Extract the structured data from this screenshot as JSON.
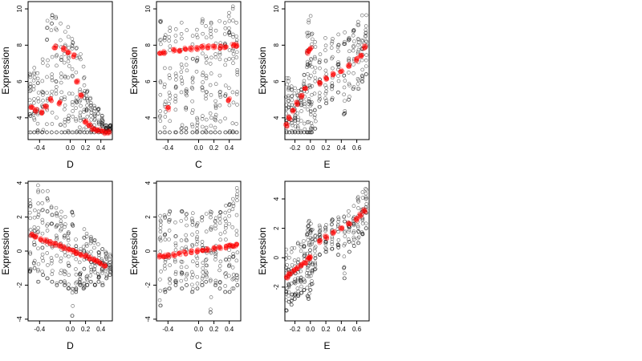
{
  "chart_data": [
    {
      "type": "scatter",
      "ylabel": "Expression",
      "xlabel": "D",
      "xlim": [
        -0.55,
        0.55
      ],
      "ylim": [
        2.8,
        10.4
      ],
      "xticks": [
        -0.4,
        0.0,
        0.2,
        0.4
      ],
      "xtick_labels": [
        "-0.4",
        "0.0",
        "0.2",
        "0.4"
      ],
      "yticks": [
        4,
        6,
        8,
        10
      ],
      "ytick_labels": [
        "4",
        "6",
        "8",
        "10"
      ],
      "grid": false,
      "series": [
        {
          "kind": "observed",
          "color": "#000000",
          "columns": [
            -0.52,
            -0.47,
            -0.42,
            -0.36,
            -0.3,
            -0.24,
            -0.18,
            -0.12,
            -0.07,
            -0.02,
            0.03,
            0.08,
            0.13,
            0.18,
            0.22,
            0.27,
            0.32,
            0.37,
            0.42,
            0.47,
            0.52
          ],
          "ranges": [
            [
              3.2,
              7.0
            ],
            [
              3.2,
              6.8
            ],
            [
              3.2,
              6.5
            ],
            [
              3.2,
              7.3
            ],
            [
              3.2,
              9.5
            ],
            [
              3.2,
              9.8
            ],
            [
              3.2,
              10.2
            ],
            [
              3.2,
              9.6
            ],
            [
              3.2,
              9.4
            ],
            [
              3.2,
              9.0
            ],
            [
              3.2,
              8.6
            ],
            [
              3.2,
              8.2
            ],
            [
              3.2,
              7.6
            ],
            [
              3.2,
              7.0
            ],
            [
              3.2,
              5.6
            ],
            [
              3.2,
              5.2
            ],
            [
              3.2,
              4.8
            ],
            [
              3.2,
              4.7
            ],
            [
              3.2,
              4.2
            ],
            [
              3.2,
              3.8
            ],
            [
              3.2,
              3.6
            ]
          ]
        },
        {
          "kind": "fitted",
          "color": "#ff0000",
          "x": [
            -0.5,
            -0.45,
            -0.38,
            -0.32,
            -0.26,
            -0.2,
            -0.14,
            -0.08,
            -0.02,
            0.04,
            0.09,
            0.14,
            0.2,
            0.25,
            0.3,
            0.35,
            0.4,
            0.45,
            0.5
          ],
          "y": [
            4.6,
            4.4,
            4.3,
            4.6,
            5.0,
            7.9,
            4.8,
            7.8,
            7.6,
            7.4,
            6.0,
            5.2,
            3.8,
            3.6,
            3.4,
            3.3,
            3.3,
            3.2,
            3.2
          ]
        }
      ]
    },
    {
      "type": "scatter",
      "ylabel": "Expression",
      "xlabel": "C",
      "xlim": [
        -0.55,
        0.55
      ],
      "ylim": [
        2.8,
        10.4
      ],
      "xticks": [
        -0.4,
        0.0,
        0.2,
        0.4
      ],
      "xtick_labels": [
        "-0.4",
        "0.0",
        "0.2",
        "0.4"
      ],
      "yticks": [
        4,
        6,
        8,
        10
      ],
      "ytick_labels": [
        "4",
        "6",
        "8",
        "10"
      ],
      "grid": false,
      "series": [
        {
          "kind": "observed",
          "color": "#000000",
          "columns": [
            -0.5,
            -0.44,
            -0.38,
            -0.3,
            -0.22,
            -0.16,
            -0.08,
            -0.02,
            0.05,
            0.1,
            0.16,
            0.22,
            0.28,
            0.35,
            0.4,
            0.45,
            0.5
          ],
          "ranges": [
            [
              3.2,
              9.8
            ],
            [
              3.2,
              9.6
            ],
            [
              3.2,
              9.4
            ],
            [
              3.2,
              9.2
            ],
            [
              3.2,
              9.6
            ],
            [
              3.2,
              9.0
            ],
            [
              3.2,
              9.4
            ],
            [
              3.2,
              9.0
            ],
            [
              3.2,
              9.6
            ],
            [
              3.2,
              9.2
            ],
            [
              3.2,
              9.4
            ],
            [
              3.2,
              9.0
            ],
            [
              3.2,
              9.6
            ],
            [
              3.2,
              9.8
            ],
            [
              3.2,
              10.0
            ],
            [
              3.2,
              10.2
            ],
            [
              3.2,
              10.4
            ]
          ]
        },
        {
          "kind": "fitted",
          "color": "#ff0000",
          "x": [
            -0.5,
            -0.45,
            -0.4,
            -0.32,
            -0.25,
            -0.18,
            -0.1,
            -0.02,
            0.05,
            0.12,
            0.2,
            0.28,
            0.35,
            0.4,
            0.45,
            0.5
          ],
          "y": [
            7.6,
            7.6,
            4.5,
            7.7,
            7.7,
            7.8,
            7.8,
            7.8,
            7.9,
            7.9,
            7.9,
            7.9,
            7.9,
            5.0,
            8.0,
            8.0
          ]
        }
      ]
    },
    {
      "type": "scatter",
      "ylabel": "Expression",
      "xlabel": "E",
      "xlim": [
        -0.33,
        0.76
      ],
      "ylim": [
        2.8,
        10.4
      ],
      "xticks": [
        -0.2,
        0.0,
        0.2,
        0.4,
        0.6
      ],
      "xtick_labels": [
        "-0.2",
        "0.0",
        "0.2",
        "0.4",
        "0.6"
      ],
      "yticks": [
        4,
        6,
        8,
        10
      ],
      "ytick_labels": [
        "4",
        "6",
        "8",
        "10"
      ],
      "grid": false,
      "series": [
        {
          "kind": "observed",
          "color": "#000000",
          "columns": [
            -0.31,
            -0.28,
            -0.24,
            -0.2,
            -0.16,
            -0.12,
            -0.08,
            -0.04,
            -0.02,
            0.0,
            0.02,
            0.06,
            0.12,
            0.2,
            0.28,
            0.36,
            0.44,
            0.5,
            0.56,
            0.62,
            0.67,
            0.72
          ],
          "ranges": [
            [
              3.2,
              6.6
            ],
            [
              3.2,
              6.2
            ],
            [
              3.2,
              6.0
            ],
            [
              3.2,
              5.8
            ],
            [
              3.2,
              5.8
            ],
            [
              3.2,
              5.6
            ],
            [
              3.2,
              6.4
            ],
            [
              3.2,
              9.2
            ],
            [
              3.2,
              9.6
            ],
            [
              3.2,
              9.8
            ],
            [
              3.2,
              9.0
            ],
            [
              3.4,
              8.2
            ],
            [
              4.6,
              7.8
            ],
            [
              4.8,
              8.4
            ],
            [
              5.0,
              8.4
            ],
            [
              5.4,
              8.6
            ],
            [
              4.2,
              8.8
            ],
            [
              5.0,
              8.8
            ],
            [
              5.6,
              9.4
            ],
            [
              5.6,
              9.4
            ],
            [
              6.0,
              9.8
            ],
            [
              6.4,
              10.0
            ]
          ]
        },
        {
          "kind": "fitted",
          "color": "#ff0000",
          "x": [
            -0.31,
            -0.27,
            -0.22,
            -0.17,
            -0.12,
            -0.07,
            -0.03,
            0.0,
            0.12,
            0.2,
            0.3,
            0.4,
            0.5,
            0.6,
            0.65,
            0.7
          ],
          "y": [
            3.6,
            4.0,
            4.4,
            4.8,
            5.2,
            5.6,
            7.6,
            7.8,
            5.9,
            6.2,
            6.4,
            6.6,
            6.9,
            7.2,
            7.4,
            7.9
          ]
        }
      ]
    },
    {
      "type": "scatter",
      "ylabel": "Expression",
      "xlabel": "D",
      "xlim": [
        -0.55,
        0.55
      ],
      "ylim": [
        -4.1,
        4.1
      ],
      "xticks": [
        -0.4,
        0.0,
        0.2,
        0.4
      ],
      "xtick_labels": [
        "-0.4",
        "0.0",
        "0.2",
        "0.4"
      ],
      "yticks": [
        -4,
        -2,
        0,
        2,
        4
      ],
      "ytick_labels": [
        "-4",
        "-2",
        "0",
        "2",
        "4"
      ],
      "grid": false,
      "series": [
        {
          "kind": "observed",
          "color": "#000000",
          "columns": [
            -0.52,
            -0.47,
            -0.42,
            -0.36,
            -0.3,
            -0.24,
            -0.18,
            -0.12,
            -0.07,
            -0.02,
            0.03,
            0.08,
            0.13,
            0.18,
            0.22,
            0.27,
            0.32,
            0.37,
            0.42,
            0.47,
            0.52
          ],
          "ranges": [
            [
              -1.2,
              3.4
            ],
            [
              -1.0,
              3.0
            ],
            [
              -1.8,
              4.0
            ],
            [
              -1.4,
              3.6
            ],
            [
              -1.6,
              3.8
            ],
            [
              -1.8,
              2.8
            ],
            [
              -2.0,
              2.6
            ],
            [
              -1.8,
              2.4
            ],
            [
              -2.0,
              2.2
            ],
            [
              -2.2,
              2.0
            ],
            [
              -3.8,
              2.6
            ],
            [
              -2.4,
              1.8
            ],
            [
              -2.0,
              1.6
            ],
            [
              -2.2,
              1.4
            ],
            [
              -2.0,
              1.2
            ],
            [
              -1.8,
              1.0
            ],
            [
              -2.0,
              0.8
            ],
            [
              -1.8,
              0.4
            ],
            [
              -2.0,
              0.2
            ],
            [
              -1.6,
              0.0
            ],
            [
              -1.4,
              -0.2
            ]
          ]
        },
        {
          "kind": "fitted",
          "color": "#ff0000",
          "x": [
            -0.5,
            -0.45,
            -0.38,
            -0.32,
            -0.26,
            -0.2,
            -0.14,
            -0.08,
            -0.02,
            0.04,
            0.09,
            0.14,
            0.2,
            0.25,
            0.3,
            0.35,
            0.4,
            0.45
          ],
          "y": [
            0.95,
            0.85,
            0.7,
            0.6,
            0.5,
            0.4,
            0.3,
            0.2,
            0.1,
            0.0,
            -0.1,
            -0.2,
            -0.3,
            -0.42,
            -0.52,
            -0.62,
            -0.72,
            -0.82
          ]
        }
      ]
    },
    {
      "type": "scatter",
      "ylabel": "Expression",
      "xlabel": "C",
      "xlim": [
        -0.55,
        0.55
      ],
      "ylim": [
        -4.1,
        4.1
      ],
      "xticks": [
        -0.4,
        0.0,
        0.2,
        0.4
      ],
      "xtick_labels": [
        "-0.4",
        "0.0",
        "0.2",
        "0.4"
      ],
      "yticks": [
        -4,
        -2,
        0,
        2,
        4
      ],
      "ytick_labels": [
        "-4",
        "-2",
        "0",
        "2",
        "4"
      ],
      "grid": false,
      "series": [
        {
          "kind": "observed",
          "color": "#000000",
          "columns": [
            -0.5,
            -0.44,
            -0.38,
            -0.3,
            -0.22,
            -0.16,
            -0.08,
            -0.02,
            0.05,
            0.1,
            0.16,
            0.22,
            0.28,
            0.35,
            0.4,
            0.45,
            0.5
          ],
          "ranges": [
            [
              -3.2,
              2.2
            ],
            [
              -2.4,
              2.4
            ],
            [
              -2.2,
              2.6
            ],
            [
              -2.0,
              2.4
            ],
            [
              -2.2,
              2.6
            ],
            [
              -2.0,
              2.2
            ],
            [
              -2.4,
              2.4
            ],
            [
              -2.2,
              2.0
            ],
            [
              -2.0,
              2.6
            ],
            [
              -1.8,
              2.2
            ],
            [
              -3.6,
              2.4
            ],
            [
              -2.0,
              2.0
            ],
            [
              -2.2,
              2.6
            ],
            [
              -2.4,
              2.8
            ],
            [
              -2.4,
              3.0
            ],
            [
              -2.2,
              3.4
            ],
            [
              -2.0,
              3.8
            ]
          ]
        },
        {
          "kind": "fitted",
          "color": "#ff0000",
          "x": [
            -0.5,
            -0.45,
            -0.4,
            -0.32,
            -0.25,
            -0.18,
            -0.1,
            -0.02,
            0.05,
            0.12,
            0.2,
            0.28,
            0.35,
            0.4,
            0.45,
            0.5
          ],
          "y": [
            -0.3,
            -0.28,
            -0.25,
            -0.2,
            -0.15,
            -0.1,
            -0.05,
            0.0,
            0.05,
            0.1,
            0.15,
            0.2,
            0.25,
            0.3,
            0.34,
            0.38
          ]
        }
      ]
    },
    {
      "type": "scatter",
      "ylabel": "Expression",
      "xlabel": "E",
      "xlim": [
        -0.33,
        0.76
      ],
      "ylim": [
        -4.3,
        5.2
      ],
      "xticks": [
        -0.2,
        0.0,
        0.2,
        0.4,
        0.6
      ],
      "xtick_labels": [
        "-0.2",
        "0.0",
        "0.2",
        "0.4",
        "0.6"
      ],
      "yticks": [
        -2,
        0,
        2,
        4
      ],
      "ytick_labels": [
        "-2",
        "0",
        "2",
        "4"
      ],
      "grid": false,
      "series": [
        {
          "kind": "observed",
          "color": "#000000",
          "columns": [
            -0.31,
            -0.28,
            -0.24,
            -0.2,
            -0.16,
            -0.12,
            -0.08,
            -0.04,
            -0.02,
            0.0,
            0.02,
            0.06,
            0.12,
            0.2,
            0.28,
            0.36,
            0.44,
            0.5,
            0.56,
            0.62,
            0.67,
            0.72
          ],
          "ranges": [
            [
              -3.6,
              0.6
            ],
            [
              -3.0,
              0.8
            ],
            [
              -3.2,
              1.0
            ],
            [
              -2.8,
              1.0
            ],
            [
              -2.6,
              1.2
            ],
            [
              -2.4,
              1.0
            ],
            [
              -2.2,
              1.6
            ],
            [
              -2.6,
              2.2
            ],
            [
              -2.8,
              2.6
            ],
            [
              -2.2,
              2.4
            ],
            [
              -1.8,
              2.0
            ],
            [
              -0.8,
              1.6
            ],
            [
              0.2,
              2.2
            ],
            [
              0.4,
              2.4
            ],
            [
              0.6,
              2.6
            ],
            [
              0.2,
              2.8
            ],
            [
              -1.4,
              3.0
            ],
            [
              0.4,
              3.2
            ],
            [
              0.8,
              3.6
            ],
            [
              1.0,
              4.2
            ],
            [
              1.6,
              4.6
            ],
            [
              2.0,
              5.0
            ]
          ]
        },
        {
          "kind": "fitted",
          "color": "#ff0000",
          "x": [
            -0.3,
            -0.27,
            -0.22,
            -0.17,
            -0.12,
            -0.07,
            -0.03,
            0.0,
            0.12,
            0.2,
            0.3,
            0.4,
            0.5,
            0.6,
            0.65,
            0.7
          ],
          "y": [
            -1.3,
            -1.1,
            -0.9,
            -0.7,
            -0.5,
            -0.3,
            -0.1,
            0.05,
            1.1,
            1.4,
            1.7,
            2.0,
            2.3,
            2.6,
            2.9,
            3.2
          ]
        }
      ]
    }
  ]
}
